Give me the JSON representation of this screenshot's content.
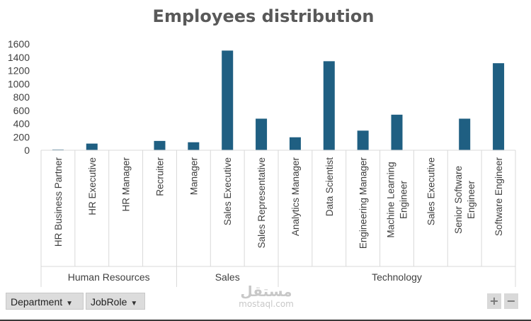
{
  "chart_data": {
    "type": "bar",
    "title": "Employees distribution",
    "ylim": [
      0,
      1600
    ],
    "y_ticks": [
      0,
      200,
      400,
      600,
      800,
      1000,
      1200,
      1400,
      1600
    ],
    "grid": false,
    "legend": "none",
    "bar_color": "#1f5f82",
    "groups": [
      {
        "name": "Human Resources",
        "categories": [
          "HR Business Partner",
          "HR Executive",
          "HR Manager",
          "Recruiter"
        ],
        "values": [
          10,
          100,
          0,
          140
        ]
      },
      {
        "name": "Sales",
        "categories": [
          "Manager",
          "Sales Executive",
          "Sales Representative"
        ],
        "values": [
          120,
          1500,
          475
        ]
      },
      {
        "name": "Technology",
        "categories": [
          "Analytics Manager",
          "Data Scientist",
          "Engineering Manager",
          "Machine Learning Engineer",
          "Sales Executive",
          "Senior Software Engineer",
          "Software Engineer"
        ],
        "values": [
          195,
          1340,
          295,
          535,
          0,
          475,
          1310
        ]
      }
    ]
  },
  "controls": {
    "department_button": "Department",
    "jobrole_button": "JobRole",
    "zoom_in": "+",
    "zoom_out": "−",
    "dropdown_arrow": "▼"
  },
  "watermark": {
    "arabic": "مستقل",
    "latin": "mostaql.com"
  }
}
